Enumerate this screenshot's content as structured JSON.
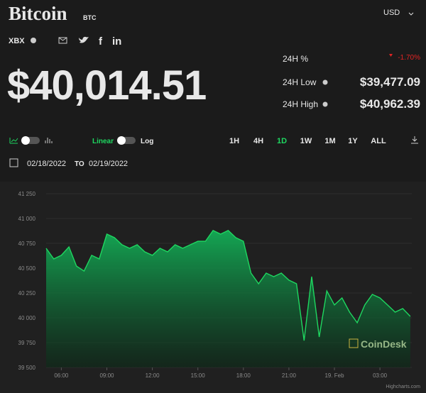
{
  "header": {
    "name": "Bitcoin",
    "symbol": "BTC",
    "currency": "USD",
    "ticker": "XBX",
    "share": [
      "f",
      "in"
    ],
    "price": "$40,014.51"
  },
  "stats": [
    {
      "label": "24H %",
      "value": "-1.70%"
    },
    {
      "label": "24H Low",
      "value": "$39,477.09"
    },
    {
      "label": "24H High",
      "value": "$40,962.39"
    }
  ],
  "controls": {
    "scale": [
      "Linear",
      "Log"
    ],
    "ranges": [
      "1H",
      "4H",
      "1D",
      "1W",
      "1M",
      "1Y",
      "ALL"
    ],
    "active_range": "1D",
    "date_from": "02/18/2022",
    "date_sep": "TO",
    "date_to": "02/19/2022"
  },
  "watermark": "CoinDesk",
  "credit": "Highcharts.com",
  "chart_data": {
    "type": "line",
    "color": "#1ed760",
    "x": [
      5,
      5.5,
      6,
      6.5,
      7,
      7.5,
      8,
      8.5,
      9,
      9.5,
      10,
      10.5,
      11,
      11.5,
      12,
      12.5,
      13,
      13.5,
      14,
      14.5,
      15,
      15.5,
      16,
      16.5,
      17,
      17.5,
      18,
      18.5,
      19,
      19.5,
      20,
      20.5,
      21,
      21.5,
      22,
      22.5,
      23,
      23.5,
      24,
      24.5,
      25,
      25.5,
      26,
      26.5,
      27,
      27.5,
      28,
      28.5,
      29
    ],
    "values": [
      40700,
      40593,
      40629,
      40714,
      40521,
      40471,
      40629,
      40593,
      40843,
      40807,
      40736,
      40700,
      40736,
      40664,
      40629,
      40700,
      40664,
      40736,
      40700,
      40736,
      40771,
      40771,
      40879,
      40843,
      40879,
      40807,
      40771,
      40450,
      40343,
      40450,
      40414,
      40450,
      40379,
      40343,
      39771,
      40414,
      39807,
      40271,
      40129,
      40200,
      40057,
      39950,
      40129,
      40236,
      40200,
      40129,
      40057,
      40093,
      40014
    ],
    "xlim": [
      5,
      29.1
    ],
    "xticks": [
      {
        "value": 6,
        "label": "06:00"
      },
      {
        "value": 9,
        "label": "09:00"
      },
      {
        "value": 12,
        "label": "12:00"
      },
      {
        "value": 15,
        "label": "15:00"
      },
      {
        "value": 18,
        "label": "18:00"
      },
      {
        "value": 21,
        "label": "21:00"
      },
      {
        "value": 24,
        "label": "19. Feb"
      },
      {
        "value": 27,
        "label": "03:00"
      }
    ],
    "ylim": [
      39500,
      41250
    ],
    "yticks": [
      {
        "value": 39500,
        "label": "39 500"
      },
      {
        "value": 39750,
        "label": "39 750"
      },
      {
        "value": 40000,
        "label": "40 000"
      },
      {
        "value": 40250,
        "label": "40 250"
      },
      {
        "value": 40500,
        "label": "40 500"
      },
      {
        "value": 40750,
        "label": "40 750"
      },
      {
        "value": 41000,
        "label": "41 000"
      },
      {
        "value": 41250,
        "label": "41 250"
      }
    ],
    "grid": true
  }
}
